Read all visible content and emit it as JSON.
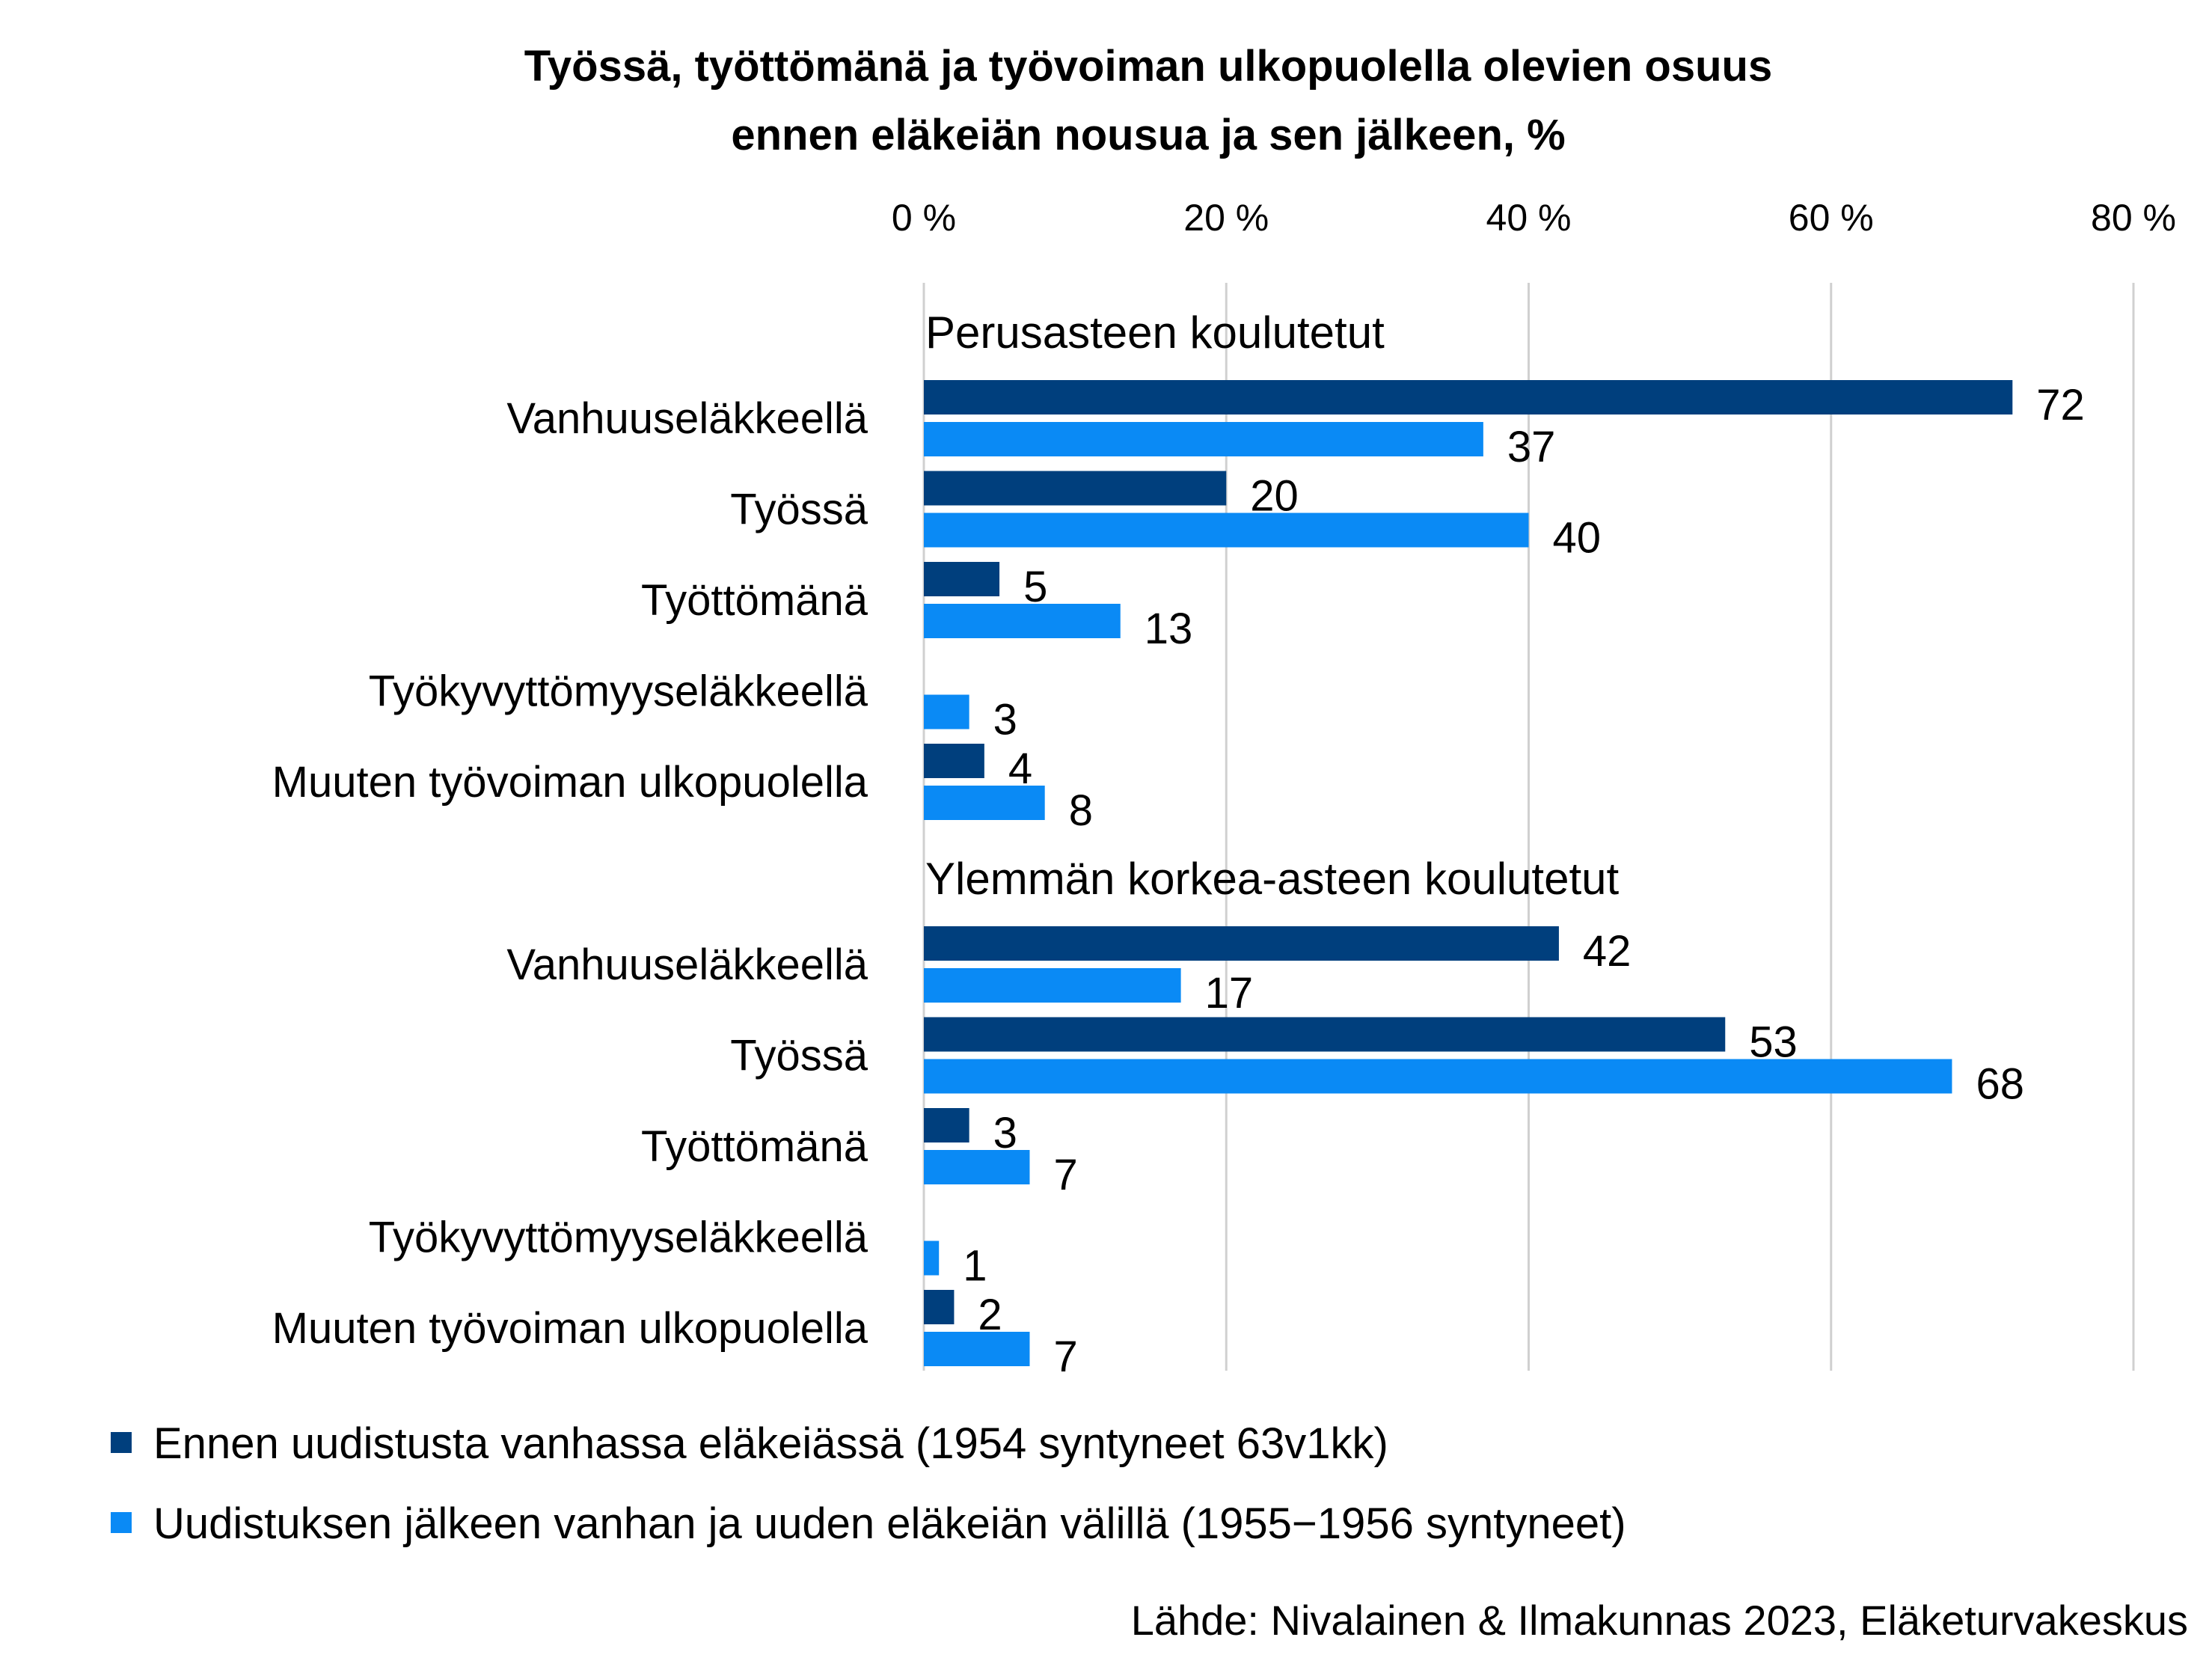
{
  "chart_data": {
    "type": "bar",
    "orientation": "horizontal",
    "title": [
      "Työssä, työttömänä ja työvoiman ulkopuolella olevien osuus",
      "ennen eläkeiän nousua ja sen jälkeen, %"
    ],
    "xlim": [
      0,
      80
    ],
    "xticks": [
      "0 %",
      "20 %",
      "40 %",
      "60 %",
      "80 %"
    ],
    "xtick_values": [
      0,
      20,
      40,
      60,
      80
    ],
    "grid": true,
    "legend_position": "bottom",
    "groups": [
      {
        "label": "Perusasteen koulutetut",
        "categories": [
          "Vanhuuseläkkeellä",
          "Työssä",
          "Työttömänä",
          "Työkyvyttömyyseläkkeellä",
          "Muuten työvoiman ulkopuolella"
        ],
        "series": [
          {
            "name": "Ennen uudistusta vanhassa eläkeiässä (1954 syntyneet 63v1kk)",
            "values": [
              72,
              20,
              5,
              null,
              4
            ]
          },
          {
            "name": "Uudistuksen jälkeen vanhan ja uuden eläkeiän välillä (1955−1956 syntyneet)",
            "values": [
              37,
              40,
              13,
              3,
              8
            ]
          }
        ]
      },
      {
        "label": "Ylemmän korkea-asteen koulutetut",
        "categories": [
          "Vanhuuseläkkeellä",
          "Työssä",
          "Työttömänä",
          "Työkyvyttömyyseläkkeellä",
          "Muuten työvoiman ulkopuolella"
        ],
        "series": [
          {
            "name": "Ennen uudistusta vanhassa eläkeiässä (1954 syntyneet 63v1kk)",
            "values": [
              42,
              53,
              3,
              null,
              2
            ]
          },
          {
            "name": "Uudistuksen jälkeen vanhan ja uuden eläkeiän välillä (1955−1956 syntyneet)",
            "values": [
              17,
              68,
              7,
              1,
              7
            ]
          }
        ]
      }
    ],
    "legend": [
      {
        "label": "Ennen uudistusta vanhassa eläkeiässä (1954 syntyneet 63v1kk)",
        "color": "#003F7D"
      },
      {
        "label": "Uudistuksen jälkeen vanhan ja uuden eläkeiän välillä (1955−1956 syntyneet)",
        "color": "#0A8AF5"
      }
    ],
    "colors": [
      "#003F7D",
      "#0A8AF5"
    ],
    "source": "Lähde: Nivalainen & Ilmakunnas 2023, Eläketurvakeskus"
  }
}
